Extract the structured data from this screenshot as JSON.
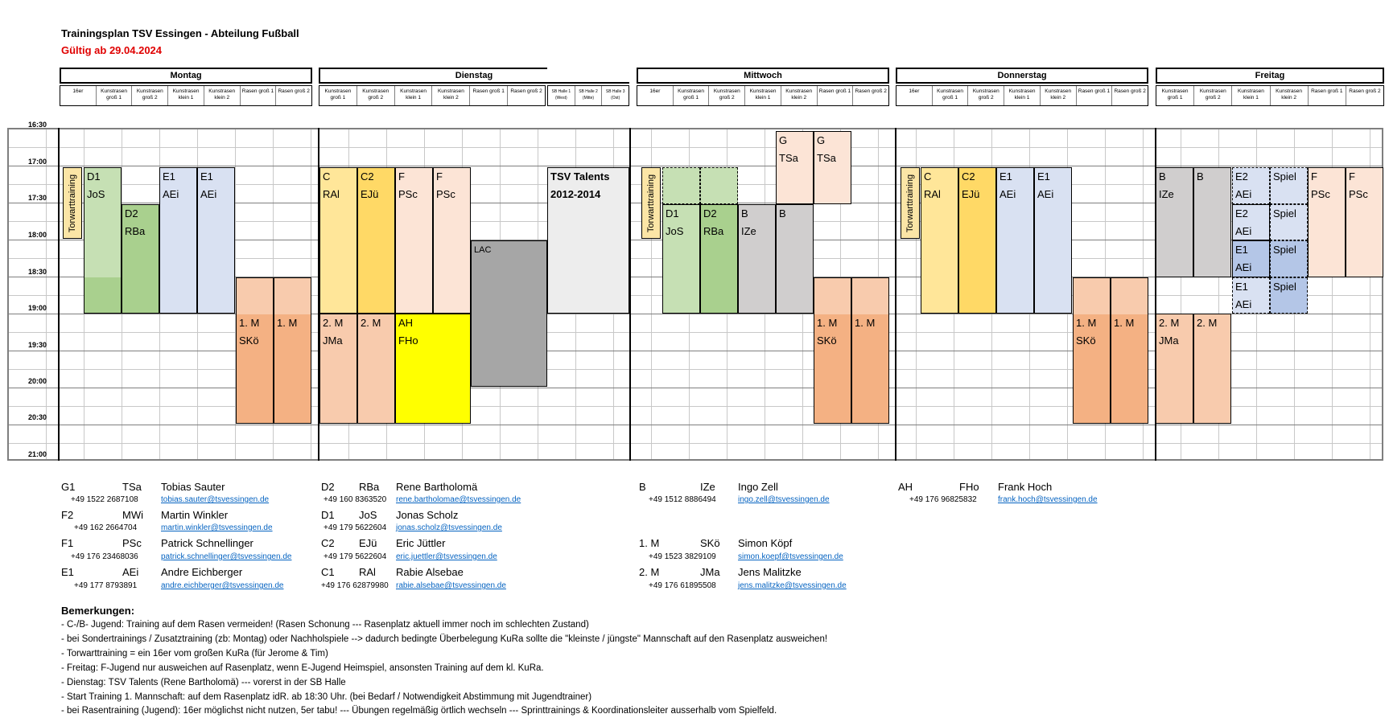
{
  "header": {
    "title": "Trainingsplan TSV Essingen - Abteilung Fußball",
    "valid": "Gültig ab 29.04.2024"
  },
  "days": [
    {
      "name": "Montag",
      "cols": [
        "16er",
        "Kunstrasen groß 1",
        "Kunstrasen groß 2",
        "Kunstrasen klein 1",
        "Kunstrasen klein 2",
        "Rasen groß 1",
        "Rasen groß 2"
      ]
    },
    {
      "name": "Dienstag",
      "cols": [
        "Kunstrasen groß 1",
        "Kunstrasen groß 2",
        "Kunstrasen klein 1",
        "Kunstrasen klein 2",
        "Rasen groß 1",
        "Rasen groß 2"
      ]
    },
    {
      "name": "",
      "cols": [
        "SB Halle 1 (West)",
        "SB Halle 2 (Mitte)",
        "SB Halle 3 (Ost)"
      ]
    },
    {
      "name": "Mittwoch",
      "cols": [
        "16er",
        "Kunstrasen groß 1",
        "Kunstrasen groß 2",
        "Kunstrasen klein 1",
        "Kunstrasen klein 2",
        "Rasen groß 1",
        "Rasen groß 2"
      ]
    },
    {
      "name": "Donnerstag",
      "cols": [
        "16er",
        "Kunstrasen groß 1",
        "Kunstrasen groß 2",
        "Kunstrasen klein 1",
        "Kunstrasen klein 2",
        "Rasen groß 1",
        "Rasen groß 2"
      ]
    },
    {
      "name": "Freitag",
      "cols": [
        "Kunstrasen groß 1",
        "Kunstrasen groß 2",
        "Kunstrasen klein 1",
        "Kunstrasen klein 2",
        "Rasen groß 1",
        "Rasen groß 2"
      ]
    }
  ],
  "times": [
    "16:30",
    "17:00",
    "17:30",
    "18:00",
    "18:30",
    "19:00",
    "19:30",
    "20:00",
    "20:30",
    "21:00"
  ],
  "blocks": {
    "tw": "Torwarttraining",
    "mo_d1": [
      "D1",
      "JoS"
    ],
    "mo_d2": [
      "D2",
      "RBa"
    ],
    "mo_e1a": [
      "E1",
      "AEi"
    ],
    "mo_e1b": [
      "E1",
      "AEi"
    ],
    "mo_1ma": [
      "1. M",
      "SKö"
    ],
    "mo_1mb": [
      "1. M",
      ""
    ],
    "di_c": [
      "C",
      "RAl"
    ],
    "di_c2": [
      "C2",
      "EJü"
    ],
    "di_fa": [
      "F",
      "PSc"
    ],
    "di_fb": [
      "F",
      "PSc"
    ],
    "di_2ma": [
      "2. M",
      "JMa"
    ],
    "di_2mb": [
      "2. M",
      ""
    ],
    "di_ah": [
      "AH",
      "FHo"
    ],
    "di_lac": "LAC",
    "talents": [
      "TSV Talents",
      "2012-2014"
    ],
    "mi_ga": [
      "G",
      "TSa"
    ],
    "mi_gb": [
      "G",
      "TSa"
    ],
    "mi_d1": [
      "D1",
      "JoS"
    ],
    "mi_d2": [
      "D2",
      "RBa"
    ],
    "mi_ba": [
      "B",
      "IZe"
    ],
    "mi_bb": [
      "B",
      ""
    ],
    "mi_1ma": [
      "1. M",
      "SKö"
    ],
    "mi_1mb": [
      "1. M",
      ""
    ],
    "do_c": [
      "C",
      "RAl"
    ],
    "do_c2": [
      "C2",
      "EJü"
    ],
    "do_e1a": [
      "E1",
      "AEi"
    ],
    "do_e1b": [
      "E1",
      "AEi"
    ],
    "do_1ma": [
      "1. M",
      "SKö"
    ],
    "do_1mb": [
      "1. M",
      ""
    ],
    "fr_ba": [
      "B",
      "IZe"
    ],
    "fr_bb": [
      "B",
      ""
    ],
    "fr_e2": [
      "E2",
      "AEi"
    ],
    "fr_e2b": [
      "E2",
      "AEi"
    ],
    "fr_e1a": [
      "E1",
      "AEi"
    ],
    "fr_e1b": [
      "E1",
      "AEi"
    ],
    "fr_spiel": "Spiel",
    "fr_fa": [
      "F",
      "PSc"
    ],
    "fr_fb": [
      "F",
      "PSc"
    ],
    "fr_2ma": [
      "2. M",
      "JMa"
    ],
    "fr_2mb": [
      "2. M",
      ""
    ]
  },
  "contacts": [
    {
      "team": "G1",
      "abbr": "TSa",
      "name": "Tobias Sauter",
      "phone": "+49 1522 2687108",
      "mail": "tobias.sauter@tsvessingen.de"
    },
    {
      "team": "F2",
      "abbr": "MWi",
      "name": "Martin Winkler",
      "phone": "+49 162 2664704",
      "mail": "martin.winkler@tsvessingen.de"
    },
    {
      "team": "F1",
      "abbr": "PSc",
      "name": "Patrick Schnellinger",
      "phone": "+49 176 23468036",
      "mail": "patrick.schnellinger@tsvessingen.de"
    },
    {
      "team": "E1",
      "abbr": "AEi",
      "name": "Andre Eichberger",
      "phone": "+49 177 8793891",
      "mail": "andre.eichberger@tsvessingen.de"
    },
    {
      "team": "D2",
      "abbr": "RBa",
      "name": "Rene Bartholomä",
      "phone": "+49 160 8363520",
      "mail": "rene.bartholomae@tsvessingen.de"
    },
    {
      "team": "D1",
      "abbr": "JoS",
      "name": "Jonas Scholz",
      "phone": "+49 179 5622604",
      "mail": "jonas.scholz@tsvessingen.de"
    },
    {
      "team": "C2",
      "abbr": "EJü",
      "name": "Eric Jüttler",
      "phone": "+49 179 5622604",
      "mail": "eric.juettler@tsvessingen.de"
    },
    {
      "team": "C1",
      "abbr": "RAl",
      "name": "Rabie Alsebae",
      "phone": "+49 176 62879980",
      "mail": "rabie.alsebae@tsvessingen.de"
    },
    {
      "team": "B",
      "abbr": "IZe",
      "name": "Ingo Zell",
      "phone": "+49 1512 8886494",
      "mail": "ingo.zell@tsvessingen.de"
    },
    {
      "team": "1. M",
      "abbr": "SKö",
      "name": "Simon Köpf",
      "phone": "+49 1523 3829109",
      "mail": "simon.koepf@tsvessingen.de"
    },
    {
      "team": "2. M",
      "abbr": "JMa",
      "name": "Jens Malitzke",
      "phone": "+49 176 61895508",
      "mail": "jens.malitzke@tsvessingen.de"
    },
    {
      "team": "AH",
      "abbr": "FHo",
      "name": "Frank Hoch",
      "phone": "+49 176 96825832",
      "mail": "frank.hoch@tsvessingen.de"
    }
  ],
  "remarks": {
    "title": "Bemerkungen:",
    "lines": [
      "- C-/B- Jugend: Training auf dem Rasen vermeiden! (Rasen Schonung --- Rasenplatz aktuell immer noch im schlechten Zustand)",
      "- bei Sondertrainings / Zusatztraining (zb: Montag) oder Nachholspiele --> dadurch bedingte Überbelegung KuRa sollte die \"kleinste / jüngste\" Mannschaft auf den Rasenplatz ausweichen!",
      "- Torwarttraining = ein 16er vom großen KuRa (für Jerome & Tim)",
      "- Freitag: F-Jugend nur ausweichen auf Rasenplatz, wenn E-Jugend Heimspiel, ansonsten Training auf dem kl. KuRa.",
      "- Dienstag: TSV Talents (Rene Bartholomä)  ---  vorerst in der SB Halle",
      "- Start Training 1. Mannschaft: auf dem Rasenplatz idR. ab 18:30 Uhr. (bei Bedarf / Notwendigkeit Abstimmung mit Jugendtrainer)",
      "- bei Rasentraining (Jugend):  16er möglichst nicht nutzen, 5er tabu!  --- Übungen regelmäßig örtlich wechseln  ---  Sprinttrainings & Koordinationsleiter ausserhalb vom Spielfeld."
    ]
  },
  "colors": {
    "tw": "#fbe5a6",
    "d1": "#c6e0b4",
    "d2": "#a9d08e",
    "e1": "#d9e1f2",
    "e1dark": "#b4c6e7",
    "m": "#f4b183",
    "mlight": "#f8cbad",
    "c": "#ffe699",
    "c2": "#ffd966",
    "f": "#fce4d6",
    "ah": "#ffff00",
    "lac": "#a6a6a6",
    "talents": "#ededed",
    "b": "#d0cece",
    "g": "#fce4d6"
  }
}
